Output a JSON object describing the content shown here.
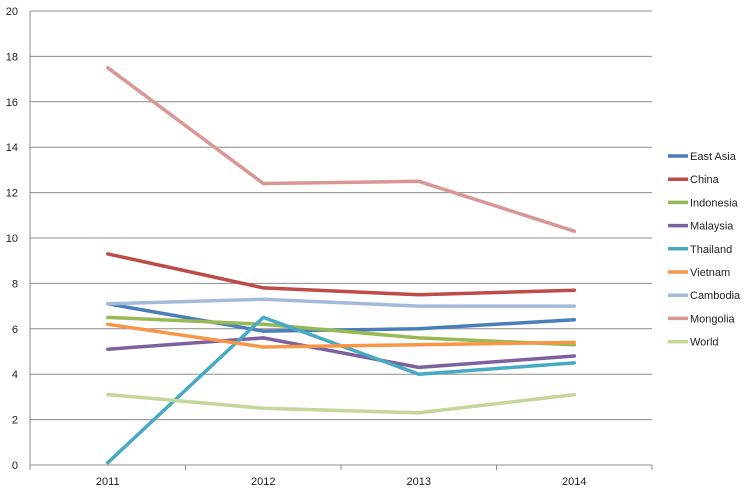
{
  "chart_data": {
    "type": "line",
    "categories": [
      "2011",
      "2012",
      "2013",
      "2014"
    ],
    "ylim": [
      0,
      20
    ],
    "yticks": [
      "0",
      "2",
      "4",
      "6",
      "8",
      "10",
      "12",
      "14",
      "16",
      "18",
      "20"
    ],
    "grid": true,
    "legend_position": "right",
    "series": [
      {
        "name": "East Asia",
        "color": "#4a7ebb",
        "values": [
          7.1,
          5.9,
          6.0,
          6.4
        ]
      },
      {
        "name": "China",
        "color": "#be4b48",
        "values": [
          9.3,
          7.8,
          7.5,
          7.7
        ]
      },
      {
        "name": "Indonesia",
        "color": "#98b954",
        "values": [
          6.5,
          6.2,
          5.6,
          5.3
        ]
      },
      {
        "name": "Malaysia",
        "color": "#7d60a0",
        "values": [
          5.1,
          5.6,
          4.3,
          4.8
        ]
      },
      {
        "name": "Thailand",
        "color": "#46aac5",
        "values": [
          0.1,
          6.5,
          4.0,
          4.5
        ]
      },
      {
        "name": "Vietnam",
        "color": "#f79646",
        "values": [
          6.2,
          5.2,
          5.3,
          5.4
        ]
      },
      {
        "name": "Cambodia",
        "color": "#a5b9d9",
        "values": [
          7.1,
          7.3,
          7.0,
          7.0
        ]
      },
      {
        "name": "Mongolia",
        "color": "#d99694",
        "values": [
          17.5,
          12.4,
          12.5,
          10.3
        ]
      },
      {
        "name": "World",
        "color": "#c3d69b",
        "values": [
          3.1,
          2.5,
          2.3,
          3.1
        ]
      }
    ]
  }
}
